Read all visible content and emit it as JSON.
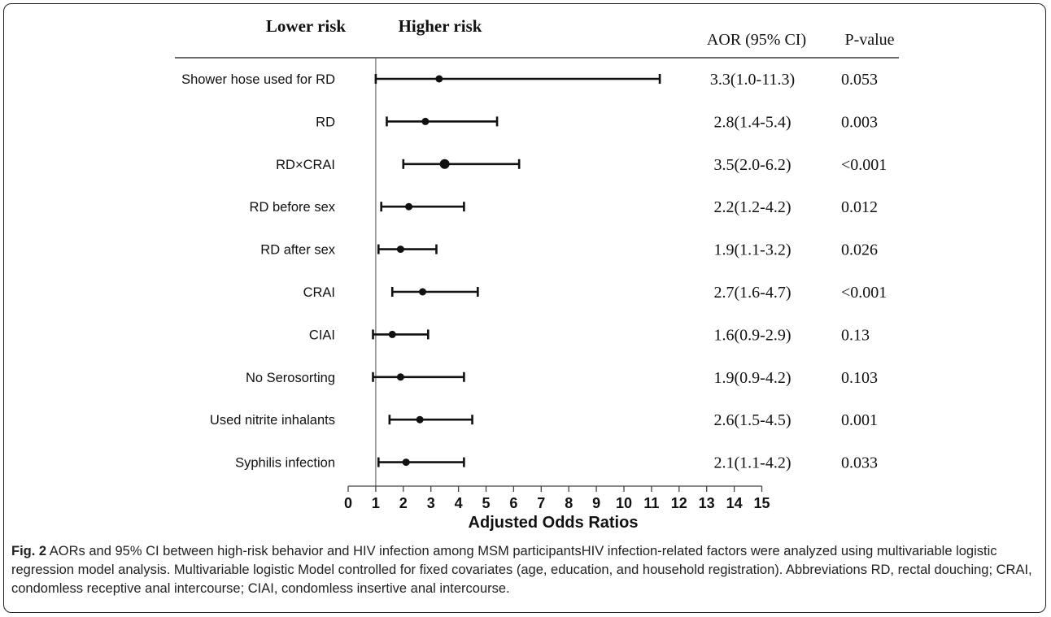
{
  "chart_data": {
    "type": "forest",
    "header": {
      "lower_risk": "Lower risk",
      "higher_risk": "Higher risk",
      "aor_col": "AOR (95% CI)",
      "p_col": "P-value"
    },
    "rows": [
      {
        "label": "Shower hose used for RD",
        "aor": 3.3,
        "lo": 1.0,
        "hi": 11.3,
        "aor_text": "3.3(1.0-11.3)",
        "p": "0.053"
      },
      {
        "label": "RD",
        "aor": 2.8,
        "lo": 1.4,
        "hi": 5.4,
        "aor_text": "2.8(1.4-5.4)",
        "p": "0.003"
      },
      {
        "label": "RD×CRAI",
        "aor": 3.5,
        "lo": 2.0,
        "hi": 6.2,
        "aor_text": "3.5(2.0-6.2)",
        "p": "<0.001",
        "emphasized": true
      },
      {
        "label": "RD before sex",
        "aor": 2.2,
        "lo": 1.2,
        "hi": 4.2,
        "aor_text": "2.2(1.2-4.2)",
        "p": "0.012"
      },
      {
        "label": "RD after sex",
        "aor": 1.9,
        "lo": 1.1,
        "hi": 3.2,
        "aor_text": "1.9(1.1-3.2)",
        "p": "0.026"
      },
      {
        "label": "CRAI",
        "aor": 2.7,
        "lo": 1.6,
        "hi": 4.7,
        "aor_text": "2.7(1.6-4.7)",
        "p": "<0.001"
      },
      {
        "label": "CIAI",
        "aor": 1.6,
        "lo": 0.9,
        "hi": 2.9,
        "aor_text": "1.6(0.9-2.9)",
        "p": "0.13"
      },
      {
        "label": "No Serosorting",
        "aor": 1.9,
        "lo": 0.9,
        "hi": 4.2,
        "aor_text": "1.9(0.9-4.2)",
        "p": "0.103"
      },
      {
        "label": "Used nitrite inhalants",
        "aor": 2.6,
        "lo": 1.5,
        "hi": 4.5,
        "aor_text": "2.6(1.5-4.5)",
        "p": "0.001"
      },
      {
        "label": "Syphilis infection",
        "aor": 2.1,
        "lo": 1.1,
        "hi": 4.2,
        "aor_text": "2.1(1.1-4.2)",
        "p": "0.033"
      }
    ],
    "x_ticks": [
      "0",
      "1",
      "2",
      "3",
      "4",
      "5",
      "6",
      "7",
      "8",
      "9",
      "10",
      "11",
      "12",
      "13",
      "14",
      "15"
    ],
    "xlim": [
      0,
      15
    ],
    "reference_line": 1,
    "xlabel": "Adjusted Odds Ratios"
  },
  "caption": {
    "label": "Fig. 2",
    "text": "AORs and 95% CI between high-risk behavior and HIV infection among MSM participantsHIV infection-related factors were analyzed using multivariable logistic regression model analysis. Multivariable logistic Model controlled for fixed covariates (age, education, and household registration). Abbreviations RD, rectal douching; CRAI, condomless receptive anal intercourse; CIAI, condomless insertive anal intercourse."
  },
  "colors": {
    "ink": "#111111",
    "text": "#222222",
    "border": "#222222"
  }
}
